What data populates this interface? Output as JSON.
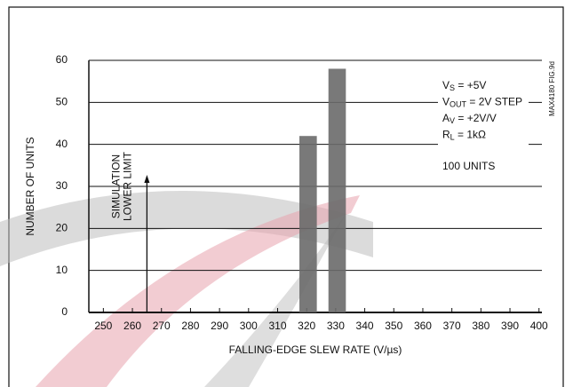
{
  "chart_data": {
    "type": "histogram",
    "x_label": "FALLING-EDGE SLEW RATE (V/µs)",
    "y_label": "NUMBER OF UNITS",
    "bins": [
      317.5,
      323.5,
      327.5,
      333.5
    ],
    "values": [
      42,
      0,
      58
    ],
    "color": "#6a6a6a",
    "xlim": [
      245,
      401
    ],
    "xticks": [
      250,
      260,
      270,
      280,
      290,
      300,
      310,
      320,
      330,
      340,
      350,
      360,
      370,
      380,
      390,
      400
    ],
    "ylim": [
      0,
      60
    ],
    "yticks": [
      0,
      10,
      20,
      30,
      40,
      50,
      60
    ],
    "grid": true,
    "lower_limit": {
      "value": 265,
      "label_lines": [
        "SIMULATION",
        "LOWER LIMIT"
      ]
    },
    "conditions": [
      [
        "V",
        "S",
        " = +5V"
      ],
      [
        "V",
        "OUT",
        " = 2V STEP"
      ],
      [
        "A",
        "V",
        " = +2V/V"
      ],
      [
        "R",
        "L",
        " = 1kΩ"
      ]
    ],
    "units_note": "100 UNITS",
    "figure_id": "MAX4180 FIG.9d"
  }
}
